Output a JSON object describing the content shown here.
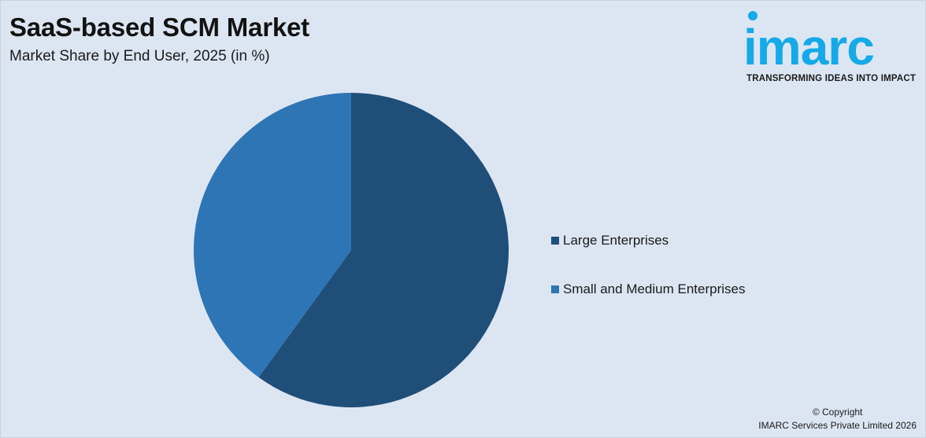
{
  "header": {
    "title": "SaaS-based SCM Market",
    "subtitle": "Market Share by End User, 2025 (in %)"
  },
  "logo": {
    "wordmark": "imarc",
    "tagline": "TRANSFORMING IDEAS INTO IMPACT",
    "color": "#16a9e8"
  },
  "chart_data": {
    "type": "pie",
    "title": "SaaS-based SCM Market",
    "subtitle": "Market Share by End User, 2025 (in %)",
    "slices": [
      {
        "name": "Large Enterprises",
        "value": 60,
        "color": "#1f4e79"
      },
      {
        "name": "Small and Medium Enterprises",
        "value": 40,
        "color": "#2e75b6"
      }
    ],
    "legend_position": "right"
  },
  "footer": {
    "copyright_line1": "© Copyright",
    "copyright_line2": "IMARC Services Private Limited 2026"
  }
}
